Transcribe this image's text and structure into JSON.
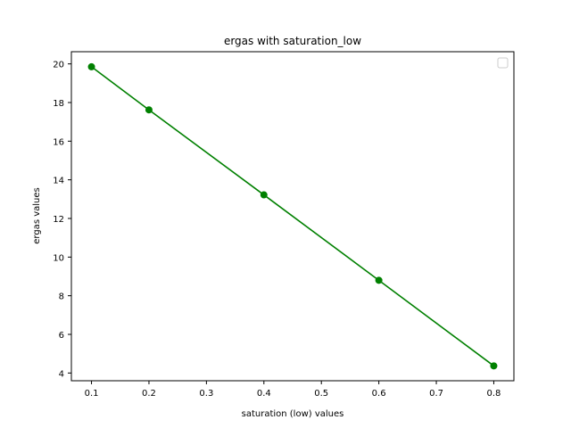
{
  "chart_data": {
    "type": "line",
    "title": "ergas with saturation_low",
    "xlabel": "saturation (low) values",
    "ylabel": "ergas values",
    "x": [
      0.1,
      0.2,
      0.4,
      0.6,
      0.8
    ],
    "series": [
      {
        "values": [
          19.85,
          17.62,
          13.22,
          8.8,
          4.37
        ],
        "color": "#008000",
        "marker": "circle"
      }
    ],
    "xlim": [
      0.065,
      0.835
    ],
    "ylim": [
      3.6,
      20.63
    ],
    "xticks": [
      "0.1",
      "0.2",
      "0.3",
      "0.4",
      "0.5",
      "0.6",
      "0.7",
      "0.8"
    ],
    "yticks": [
      "4",
      "6",
      "8",
      "10",
      "12",
      "14",
      "16",
      "18",
      "20"
    ],
    "grid": false,
    "legend": {
      "position": "top-right",
      "entries": []
    }
  }
}
